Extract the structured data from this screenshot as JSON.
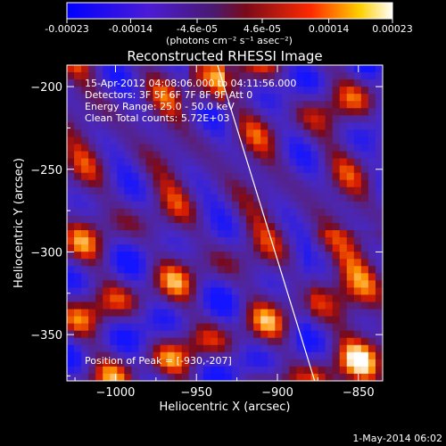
{
  "colorbar": {
    "tick_labels": [
      "-0.00023",
      "-0.00014",
      "-4.6e-05",
      "4.6e-05",
      "0.00014",
      "0.00023"
    ],
    "units": "(photons cm⁻² s⁻¹ asec⁻²)"
  },
  "chart_data": {
    "type": "heatmap",
    "title": "Reconstructed RHESSI Image",
    "xlabel": "Heliocentric X (arcsec)",
    "ylabel": "Heliocentric Y (arcsec)",
    "xlim": [
      -1030,
      -835
    ],
    "ylim": [
      -378,
      -187
    ],
    "xticks": [
      -1000,
      -950,
      -900,
      -850
    ],
    "yticks": [
      -200,
      -250,
      -300,
      -350
    ],
    "xtick_labels": [
      "−1000",
      "−950",
      "−900",
      "−850"
    ],
    "ytick_labels": [
      "−200",
      "−250",
      "−300",
      "−350"
    ],
    "color_range": [
      -0.00023,
      0.00023
    ],
    "annotations": [
      "15-Apr-2012 04:08:06.000 to 04:11:56.000",
      "Detectors: 3F 5F 6F 7F 8F 9F  Att 0",
      "Energy Range: 25.0 - 50.0 keV",
      "Clean     Total counts: 5.72E+03"
    ],
    "peak_label": "Position of Peak = [-930,-207]",
    "limb_line": {
      "x": [
        -937,
        -877
      ],
      "y": [
        -187,
        -378
      ]
    },
    "colors": {
      "negative": "#1a1aff",
      "zero": "#5a2a9a",
      "positive": "#ff6a00",
      "max": "#ffffff"
    }
  },
  "footer": {
    "timestamp": "1-May-2014 06:02"
  }
}
